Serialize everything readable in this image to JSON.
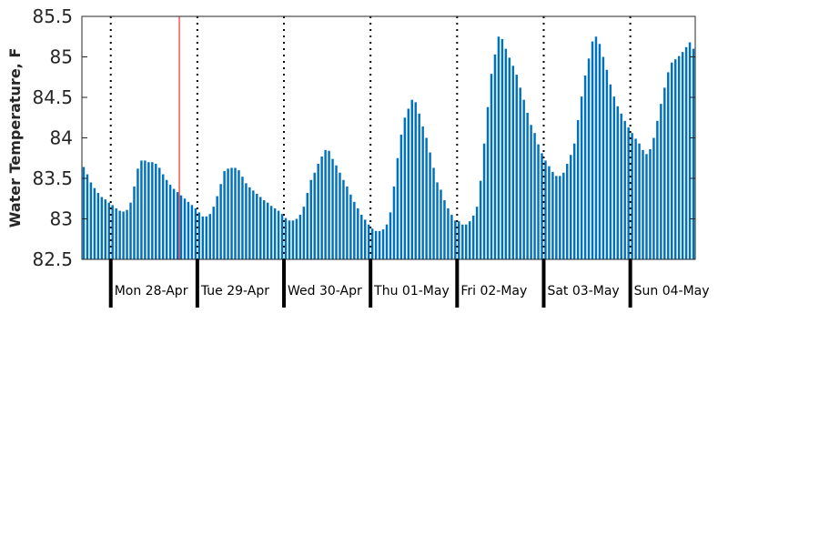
{
  "chart_data": {
    "type": "bar",
    "title": "",
    "xlabel": "",
    "ylabel": "Water Temperature, F",
    "ylim": [
      82.5,
      85.5
    ],
    "yticks": [
      82.5,
      83,
      83.5,
      84,
      84.5,
      85,
      85.5
    ],
    "ytick_labels": [
      "82.5",
      "83",
      "83.5",
      "84",
      "84.5",
      "85",
      "85.5"
    ],
    "grid": false,
    "bar_color": "#0072bd",
    "now_marker_color": "#ff0000",
    "now_marker_hour": 27,
    "day_labels": [
      "Mon 28-Apr",
      "Tue 29-Apr",
      "Wed 30-Apr",
      "Thu 01-May",
      "Fri 02-May",
      "Sat 03-May",
      "Sun 04-May"
    ],
    "series": [
      {
        "values": [
          83.64,
          83.55,
          83.45,
          83.38,
          83.32,
          83.27,
          83.24,
          83.2,
          83.17,
          83.13,
          83.1,
          83.09,
          83.11,
          83.2,
          83.4,
          83.62,
          83.72,
          83.72,
          83.7,
          83.7,
          83.68,
          83.63,
          83.55,
          83.48,
          83.42,
          83.37,
          83.33,
          83.29,
          83.25,
          83.21,
          83.17,
          83.13,
          83.08,
          83.03,
          83.03,
          83.06,
          83.15,
          83.28,
          83.43,
          83.59,
          83.62,
          83.63,
          83.63,
          83.6,
          83.52,
          83.44,
          83.39,
          83.35,
          83.31,
          83.27,
          83.23,
          83.2,
          83.16,
          83.13,
          83.1,
          83.06,
          83.01,
          82.98,
          82.98,
          83.0,
          83.05,
          83.15,
          83.32,
          83.48,
          83.57,
          83.68,
          83.77,
          83.85,
          83.84,
          83.74,
          83.66,
          83.57,
          83.48,
          83.4,
          83.3,
          83.21,
          83.13,
          83.05,
          82.99,
          82.93,
          82.88,
          82.85,
          82.85,
          82.87,
          82.93,
          83.08,
          83.4,
          83.75,
          84.04,
          84.25,
          84.36,
          84.47,
          84.44,
          84.3,
          84.14,
          84.0,
          83.82,
          83.63,
          83.45,
          83.36,
          83.23,
          83.13,
          83.05,
          82.98,
          82.97,
          82.93,
          82.93,
          82.97,
          83.04,
          83.15,
          83.47,
          83.93,
          84.38,
          84.79,
          85.03,
          85.25,
          85.22,
          85.1,
          84.99,
          84.89,
          84.78,
          84.62,
          84.47,
          84.31,
          84.16,
          84.06,
          83.92,
          83.81,
          83.72,
          83.65,
          83.58,
          83.53,
          83.53,
          83.57,
          83.68,
          83.79,
          83.93,
          84.22,
          84.51,
          84.77,
          84.98,
          85.19,
          85.25,
          85.16,
          85.0,
          84.84,
          84.66,
          84.51,
          84.39,
          84.3,
          84.21,
          84.13,
          84.06,
          83.99,
          83.93,
          83.85,
          83.8,
          83.86,
          84.0,
          84.21,
          84.42,
          84.62,
          84.81,
          84.93,
          84.97,
          85.01,
          85.06,
          85.12,
          85.18,
          85.1
        ]
      }
    ]
  }
}
